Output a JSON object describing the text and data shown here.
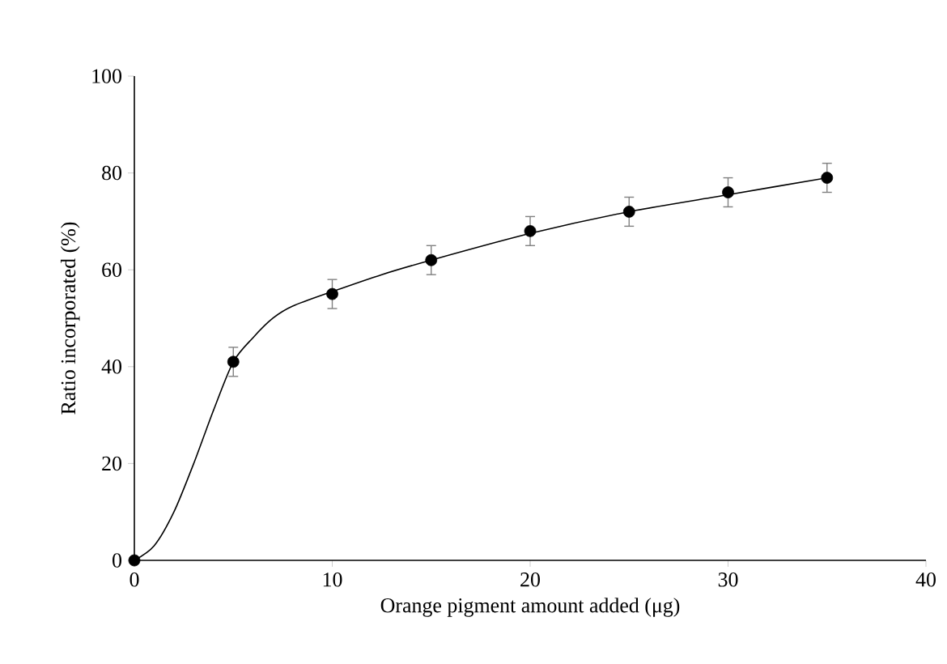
{
  "chart_data": {
    "type": "scatter",
    "xlabel": "Orange pigment amount added (μg)",
    "ylabel": "Ratio incorporated (%)",
    "xlim": [
      0,
      40
    ],
    "ylim": [
      0,
      100
    ],
    "xticks": [
      0,
      10,
      20,
      30,
      40
    ],
    "yticks": [
      0,
      20,
      40,
      60,
      80,
      100
    ],
    "grid": false,
    "series": [
      {
        "marker": "circle",
        "color": "#000000",
        "x": [
          0,
          5,
          10,
          15,
          20,
          25,
          30,
          35
        ],
        "values": [
          0,
          41,
          55,
          62,
          68,
          72,
          76,
          79
        ],
        "errors": [
          null,
          3,
          3,
          3,
          3,
          3,
          3,
          3
        ]
      },
      {
        "type": "line",
        "marker": "none",
        "color": "#000000",
        "x": [
          0,
          1,
          2,
          3,
          4,
          5,
          6,
          7,
          8,
          10,
          12.5,
          15,
          20,
          25,
          30,
          35
        ],
        "values": [
          0,
          3,
          10,
          20,
          31,
          41,
          46,
          50,
          52.5,
          55.5,
          59,
          62,
          67.5,
          72,
          75.5,
          79
        ]
      }
    ]
  }
}
